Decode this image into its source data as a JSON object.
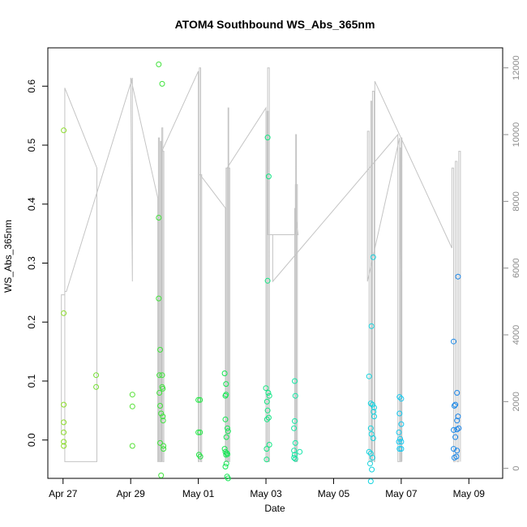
{
  "chart_data": {
    "type": "scatter",
    "title": "ATOM4 Southbound WS_Abs_365nm",
    "xlabel": "Date",
    "ylabel": "WS_Abs_365nm",
    "x_ticks": [
      {
        "day": 0,
        "label": "Apr 27"
      },
      {
        "day": 2,
        "label": "Apr 29"
      },
      {
        "day": 4,
        "label": "May 01"
      },
      {
        "day": 6,
        "label": "May 03"
      },
      {
        "day": 8,
        "label": "May 05"
      },
      {
        "day": 10,
        "label": "May 07"
      },
      {
        "day": 12,
        "label": "May 09"
      }
    ],
    "xlim": [
      -0.45,
      13.0
    ],
    "ylim": [
      -0.065,
      0.665
    ],
    "y_ticks": [
      0.0,
      0.1,
      0.2,
      0.3,
      0.4,
      0.5,
      0.6
    ],
    "y_tick_labels": [
      "0.0",
      "0.1",
      "0.2",
      "0.3",
      "0.4",
      "0.5",
      "0.6"
    ],
    "y2lim": [
      -300,
      12600
    ],
    "y2_ticks": [
      0,
      2000,
      4000,
      6000,
      8000,
      10000,
      12000
    ],
    "y2_tick_labels": [
      "0",
      "2000",
      "4000",
      "6000",
      "8000",
      "10000",
      "12000"
    ],
    "points": [
      {
        "x": 0.02,
        "y": 0.525
      },
      {
        "x": 0.02,
        "y": 0.215
      },
      {
        "x": 0.02,
        "y": 0.06
      },
      {
        "x": 0.02,
        "y": 0.03
      },
      {
        "x": 0.02,
        "y": 0.013
      },
      {
        "x": 0.02,
        "y": -0.003
      },
      {
        "x": 0.02,
        "y": -0.01
      },
      {
        "x": 0.98,
        "y": 0.11
      },
      {
        "x": 0.98,
        "y": 0.09
      },
      {
        "x": 2.05,
        "y": 0.077
      },
      {
        "x": 2.05,
        "y": 0.057
      },
      {
        "x": 2.05,
        "y": -0.01
      },
      {
        "x": 2.83,
        "y": 0.637
      },
      {
        "x": 2.83,
        "y": 0.377
      },
      {
        "x": 2.83,
        "y": 0.24
      },
      {
        "x": 2.85,
        "y": 0.11
      },
      {
        "x": 2.85,
        "y": 0.08
      },
      {
        "x": 2.87,
        "y": 0.153
      },
      {
        "x": 2.87,
        "y": 0.058
      },
      {
        "x": 2.87,
        "y": -0.005
      },
      {
        "x": 2.9,
        "y": 0.045
      },
      {
        "x": 2.9,
        "y": -0.06
      },
      {
        "x": 2.93,
        "y": 0.604
      },
      {
        "x": 2.93,
        "y": 0.11
      },
      {
        "x": 2.93,
        "y": 0.09
      },
      {
        "x": 2.95,
        "y": 0.087
      },
      {
        "x": 2.95,
        "y": 0.04
      },
      {
        "x": 2.96,
        "y": 0.033
      },
      {
        "x": 2.97,
        "y": -0.01
      },
      {
        "x": 2.97,
        "y": -0.015
      },
      {
        "x": 4.0,
        "y": 0.068
      },
      {
        "x": 4.05,
        "y": 0.068
      },
      {
        "x": 4.0,
        "y": 0.013
      },
      {
        "x": 4.05,
        "y": 0.013
      },
      {
        "x": 4.02,
        "y": -0.025
      },
      {
        "x": 4.06,
        "y": -0.028
      },
      {
        "x": 4.78,
        "y": 0.113
      },
      {
        "x": 4.8,
        "y": 0.075
      },
      {
        "x": 4.82,
        "y": 0.077
      },
      {
        "x": 4.8,
        "y": 0.035
      },
      {
        "x": 4.82,
        "y": 0.095
      },
      {
        "x": 4.78,
        "y": -0.015
      },
      {
        "x": 4.8,
        "y": -0.02
      },
      {
        "x": 4.82,
        "y": -0.025
      },
      {
        "x": 4.84,
        "y": -0.022
      },
      {
        "x": 4.83,
        "y": -0.04
      },
      {
        "x": 4.86,
        "y": -0.024
      },
      {
        "x": 4.86,
        "y": 0.02
      },
      {
        "x": 4.88,
        "y": 0.015
      },
      {
        "x": 4.83,
        "y": 0.005
      },
      {
        "x": 4.85,
        "y": -0.062
      },
      {
        "x": 4.8,
        "y": -0.045
      },
      {
        "x": 4.88,
        "y": -0.065
      },
      {
        "x": 6.0,
        "y": 0.088
      },
      {
        "x": 6.05,
        "y": 0.513
      },
      {
        "x": 6.08,
        "y": 0.447
      },
      {
        "x": 6.05,
        "y": 0.27
      },
      {
        "x": 6.03,
        "y": 0.065
      },
      {
        "x": 6.07,
        "y": 0.08
      },
      {
        "x": 6.1,
        "y": 0.075
      },
      {
        "x": 6.05,
        "y": 0.05
      },
      {
        "x": 6.03,
        "y": 0.035
      },
      {
        "x": 6.08,
        "y": 0.038
      },
      {
        "x": 6.02,
        "y": -0.015
      },
      {
        "x": 6.1,
        "y": -0.008
      },
      {
        "x": 6.02,
        "y": -0.033
      },
      {
        "x": 6.85,
        "y": 0.1
      },
      {
        "x": 6.87,
        "y": 0.075
      },
      {
        "x": 6.85,
        "y": 0.032
      },
      {
        "x": 6.83,
        "y": 0.02
      },
      {
        "x": 6.87,
        "y": -0.005
      },
      {
        "x": 6.83,
        "y": -0.018
      },
      {
        "x": 6.85,
        "y": -0.025
      },
      {
        "x": 6.83,
        "y": -0.03
      },
      {
        "x": 6.87,
        "y": -0.032
      },
      {
        "x": 7.0,
        "y": -0.02
      },
      {
        "x": 9.05,
        "y": 0.108
      },
      {
        "x": 9.1,
        "y": 0.062
      },
      {
        "x": 9.15,
        "y": 0.06
      },
      {
        "x": 9.2,
        "y": 0.055
      },
      {
        "x": 9.12,
        "y": 0.193
      },
      {
        "x": 9.17,
        "y": 0.31
      },
      {
        "x": 9.1,
        "y": 0.02
      },
      {
        "x": 9.18,
        "y": 0.048
      },
      {
        "x": 9.2,
        "y": 0.04
      },
      {
        "x": 9.12,
        "y": 0.01
      },
      {
        "x": 9.17,
        "y": 0.003
      },
      {
        "x": 9.05,
        "y": -0.02
      },
      {
        "x": 9.1,
        "y": -0.023
      },
      {
        "x": 9.15,
        "y": -0.03
      },
      {
        "x": 9.08,
        "y": -0.04
      },
      {
        "x": 9.13,
        "y": -0.05
      },
      {
        "x": 9.1,
        "y": -0.07
      },
      {
        "x": 9.95,
        "y": 0.073
      },
      {
        "x": 10.0,
        "y": 0.07
      },
      {
        "x": 9.95,
        "y": 0.045
      },
      {
        "x": 10.0,
        "y": 0.027
      },
      {
        "x": 9.93,
        "y": 0.013
      },
      {
        "x": 9.97,
        "y": 0.002
      },
      {
        "x": 9.93,
        "y": -0.003
      },
      {
        "x": 10.0,
        "y": -0.003
      },
      {
        "x": 9.95,
        "y": -0.015
      },
      {
        "x": 10.0,
        "y": -0.015
      },
      {
        "x": 11.55,
        "y": 0.167
      },
      {
        "x": 11.68,
        "y": 0.277
      },
      {
        "x": 11.6,
        "y": 0.06
      },
      {
        "x": 11.57,
        "y": 0.058
      },
      {
        "x": 11.65,
        "y": 0.08
      },
      {
        "x": 11.68,
        "y": 0.04
      },
      {
        "x": 11.65,
        "y": 0.033
      },
      {
        "x": 11.55,
        "y": 0.017
      },
      {
        "x": 11.7,
        "y": 0.02
      },
      {
        "x": 11.65,
        "y": 0.018
      },
      {
        "x": 11.6,
        "y": 0.005
      },
      {
        "x": 11.55,
        "y": -0.015
      },
      {
        "x": 11.65,
        "y": -0.018
      },
      {
        "x": 11.57,
        "y": -0.03
      },
      {
        "x": 11.63,
        "y": -0.028
      }
    ],
    "secondary_line_x": [
      -0.05,
      -0.05,
      0.05,
      0.05,
      1.0,
      1.0,
      0.05,
      0.05,
      0.1,
      2.05,
      2.05,
      2.05,
      2.0,
      2.8,
      2.8,
      2.82,
      2.82,
      2.85,
      2.85,
      2.88,
      2.88,
      2.9,
      2.9,
      2.92,
      2.92,
      2.95,
      2.95,
      2.98,
      2.98,
      2.92,
      4.0,
      4.0,
      4.03,
      4.03,
      4.07,
      4.07,
      4.1,
      4.1,
      4.05,
      4.8,
      4.8,
      4.82,
      4.82,
      4.85,
      4.85,
      4.88,
      4.88,
      4.9,
      4.9,
      4.93,
      4.93,
      4.85,
      6.0,
      6.0,
      6.03,
      6.03,
      6.07,
      6.07,
      6.1,
      6.1,
      6.05,
      6.05,
      6.95,
      6.85,
      6.85,
      6.88,
      6.88,
      6.9,
      6.9,
      6.93,
      6.93,
      6.87,
      6.87,
      6.2,
      6.2,
      9.9,
      9.9,
      9.95,
      9.95,
      9.98,
      9.98,
      10.0,
      10.0,
      10.02,
      10.02,
      9.95,
      9.0,
      9.0,
      9.05,
      9.05,
      9.1,
      9.1,
      9.13,
      9.13,
      9.15,
      9.15,
      9.2,
      9.2,
      9.22,
      9.22,
      11.5,
      11.5,
      11.55,
      11.55,
      11.6,
      11.6,
      11.65,
      11.65,
      11.7,
      11.7,
      11.75,
      11.75
    ],
    "secondary_line_y": [
      1000,
      5200,
      5200,
      11400,
      9000,
      200,
      200,
      5300,
      5300,
      11700,
      5600,
      5600,
      11700,
      8100,
      200,
      200,
      9900,
      9900,
      200,
      200,
      9800,
      9800,
      200,
      200,
      10200,
      10200,
      200,
      200,
      9500,
      9500,
      11900,
      200,
      200,
      12000,
      12000,
      200,
      200,
      8800,
      8800,
      7800,
      200,
      200,
      9000,
      9000,
      200,
      200,
      10800,
      10800,
      200,
      200,
      9000,
      9000,
      10800,
      200,
      200,
      10700,
      10700,
      200,
      200,
      12000,
      12000,
      7000,
      7000,
      7800,
      200,
      200,
      10000,
      10000,
      200,
      200,
      8500,
      8500,
      7000,
      7000,
      5600,
      10000,
      200,
      200,
      9600,
      9600,
      200,
      200,
      9900,
      9900,
      200,
      9900,
      5600,
      10100,
      10100,
      200,
      200,
      11000,
      11000,
      200,
      200,
      11300,
      11300,
      200,
      200,
      11600,
      6600,
      9000,
      9000,
      200,
      200,
      9200,
      9200,
      200,
      200,
      9500,
      9500,
      200
    ]
  }
}
